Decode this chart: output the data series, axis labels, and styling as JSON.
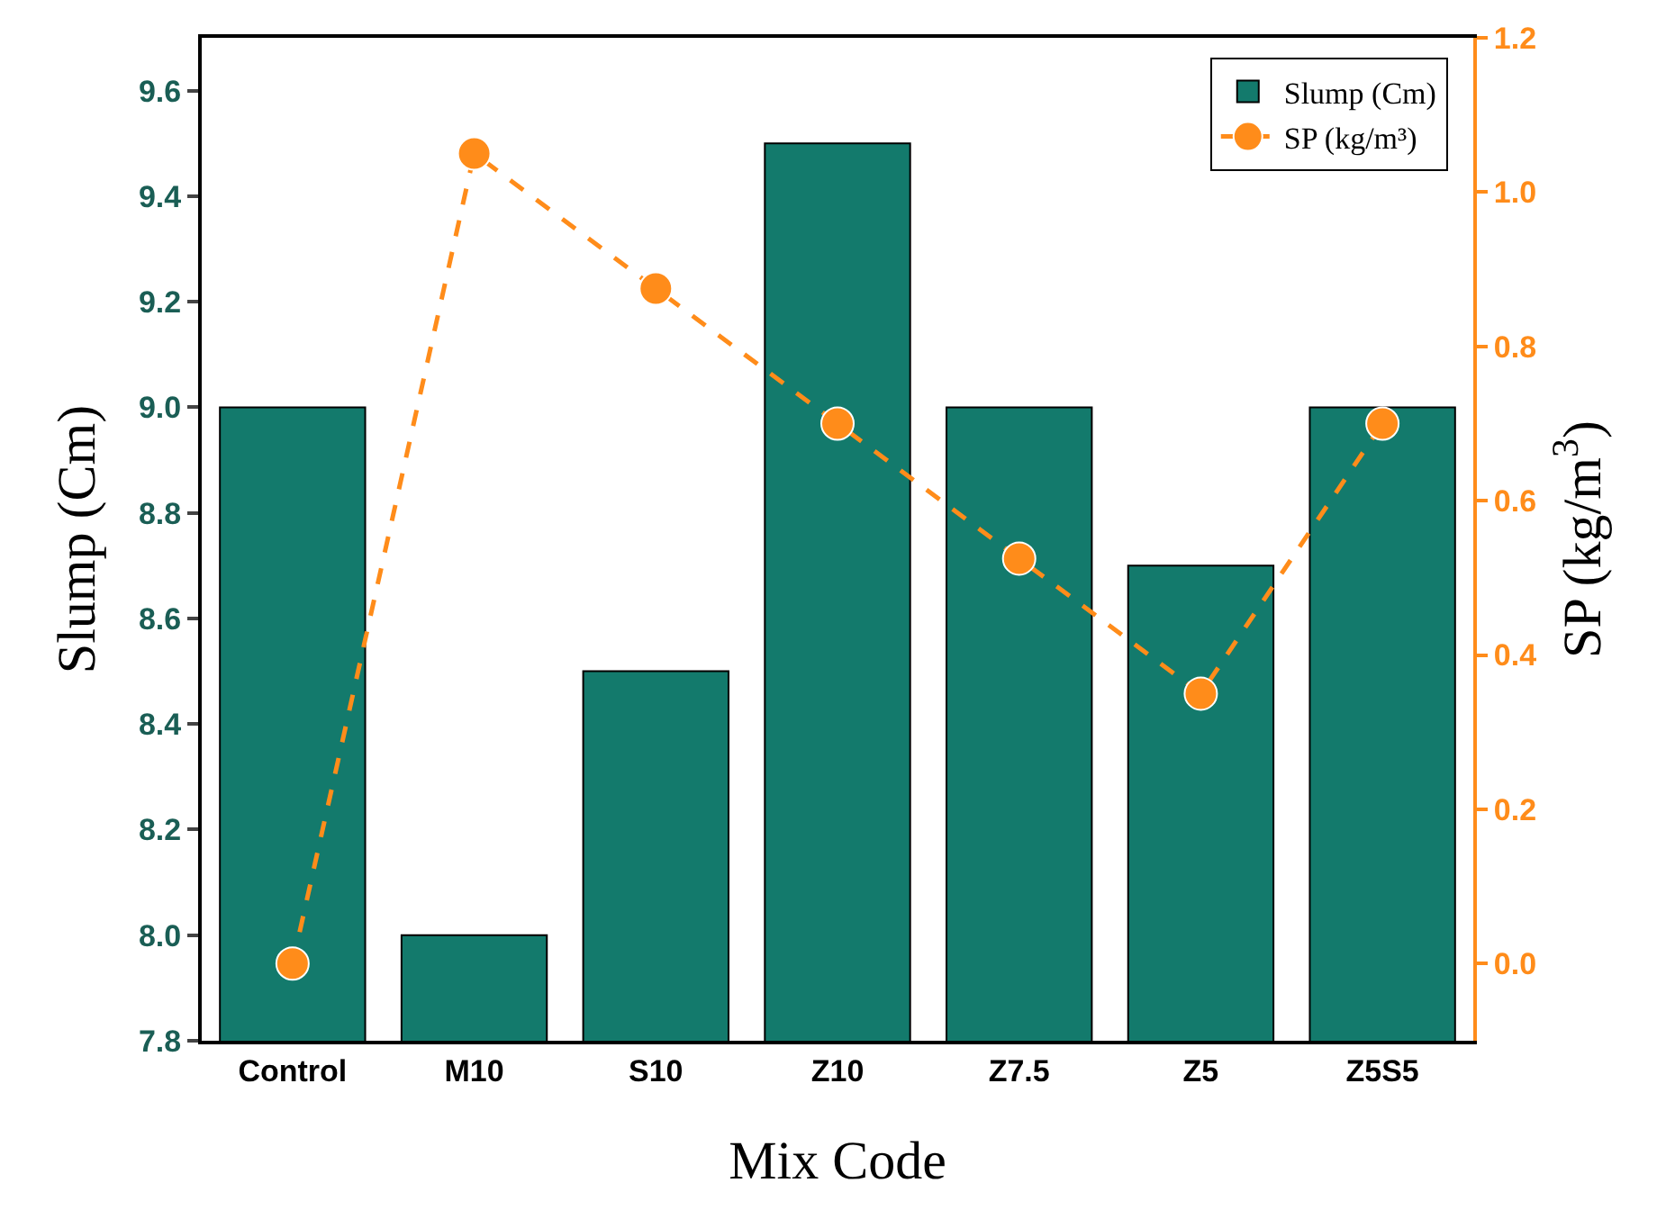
{
  "chart_data": {
    "type": "bar",
    "xlabel": "Mix Code",
    "ylabel": "Slump (Cm)",
    "y2label": "SP (kg/m$^{3}$)",
    "categories": [
      "Control",
      "M10",
      "S10",
      "Z10",
      "Z7.5",
      "Z5",
      "Z5S5"
    ],
    "series": [
      {
        "name": "Slump (Cm)",
        "color": "#137a6c",
        "values": [
          9.0,
          8.0,
          8.5,
          9.5,
          9.0,
          8.7,
          9.0
        ]
      },
      {
        "name": "SP (kg/m³)",
        "type": "line",
        "axis": "y2",
        "color": "#ff8c1a",
        "marker": "circle",
        "line_style": "dashed",
        "values": [
          0.0,
          1.05,
          0.875,
          0.7,
          0.525,
          0.35,
          0.7
        ]
      }
    ],
    "ylim": [
      7.8,
      9.7
    ],
    "yticks": [
      7.8,
      {
        "value": 8,
        "label": "8.0"
      },
      8.2,
      8.4,
      8.6,
      8.8,
      {
        "value": 9,
        "label": "9.0"
      },
      9.2,
      9.4,
      9.6
    ],
    "y2lim": [
      -0.1,
      1.2
    ],
    "y2ticks": [
      {
        "value": 0,
        "label": "0.0"
      },
      0.2,
      0.4,
      0.6,
      0.8,
      {
        "value": 1,
        "label": "1.0"
      },
      1.2
    ],
    "legend": "top right"
  }
}
